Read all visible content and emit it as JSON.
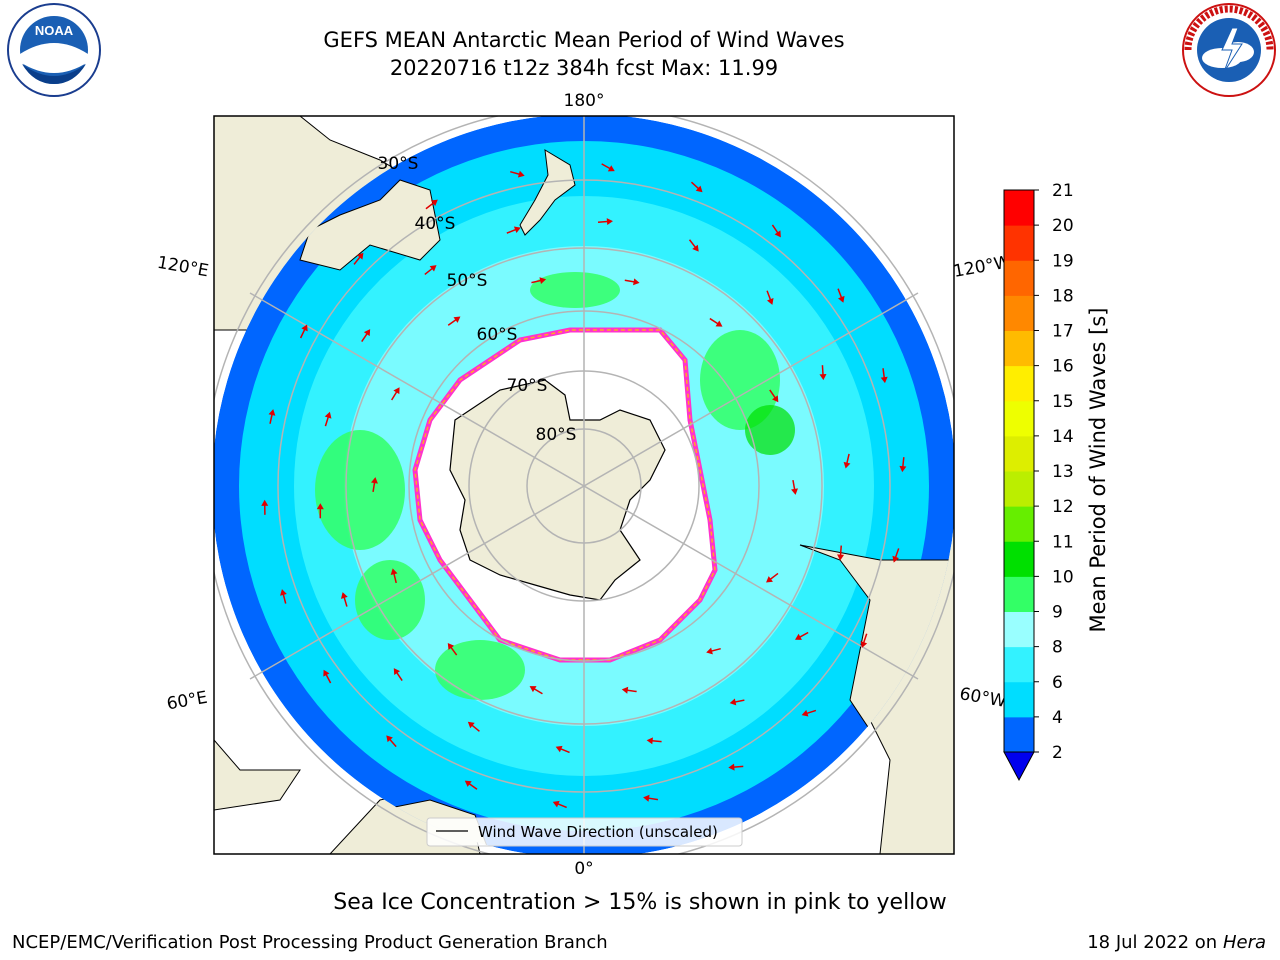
{
  "header": {
    "title_line1": "GEFS MEAN Antarctic Mean Period of Wind Waves",
    "title_line2": "20220716 t12z 384h fcst   Max: 11.99"
  },
  "logos": {
    "left": {
      "icon": "noaa-logo",
      "text": "NOAA",
      "ring_text": "NATIONAL OCEANIC AND ATMOSPHERIC ADMINISTRATION · U.S. DEPARTMENT OF COMMERCE"
    },
    "right": {
      "icon": "nws-logo",
      "ring_text": "NATIONAL WEATHER SERVICE"
    }
  },
  "map": {
    "projection": "south-polar-stereographic",
    "longitude_labels": {
      "top": "180°",
      "bottom": "0°",
      "upper_left": "120°E",
      "lower_left": "60°E",
      "upper_right": "120°W",
      "lower_right": "60°W"
    },
    "latitude_labels": [
      "30°S",
      "40°S",
      "50°S",
      "60°S",
      "70°S",
      "80°S"
    ],
    "legend": "Wind Wave Direction (unscaled)",
    "arrow_icon": "wind-direction-arrow",
    "colors": {
      "land": "#efedd8",
      "ice": "#ffffff",
      "ice_edge": "#ff33cc",
      "ice_edge_inner": "#ffaa22",
      "arrow": "#e00000",
      "grid": "#b4b4b4"
    }
  },
  "colorbar": {
    "label": "Mean Period of Wind Waves [s]",
    "ticks": [
      "2",
      "4",
      "6",
      "8",
      "9",
      "10",
      "11",
      "12",
      "13",
      "14",
      "15",
      "16",
      "17",
      "18",
      "19",
      "20",
      "21"
    ],
    "colors": [
      "#0066ff",
      "#00ddff",
      "#33f2ff",
      "#99ffff",
      "#33ff66",
      "#00e000",
      "#66ee00",
      "#bbee00",
      "#ddee00",
      "#eeff00",
      "#ffee00",
      "#ffbb00",
      "#ff8800",
      "#ff6600",
      "#ff3300",
      "#ff0000"
    ],
    "extend_color": "#0000ee"
  },
  "footer": {
    "sea_ice_note": "Sea Ice Concentration > 15% is shown in pink to yellow",
    "branch": "NCEP/EMC/Verification Post Processing Product Generation Branch",
    "date": "18 Jul 2022 on",
    "machine": "Hera"
  }
}
